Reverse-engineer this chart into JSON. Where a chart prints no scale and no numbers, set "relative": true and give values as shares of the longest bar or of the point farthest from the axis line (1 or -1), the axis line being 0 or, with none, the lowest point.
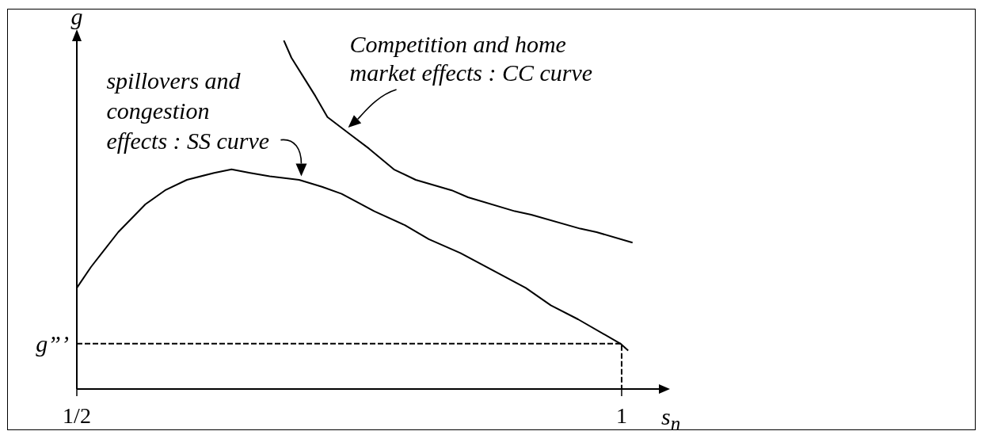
{
  "chart_data": {
    "type": "line",
    "relative": true,
    "xlabel": "s$_{n}$",
    "ylabel": "g",
    "xlim": [
      0.5,
      1.04
    ],
    "xticks": [
      {
        "value": 0.5,
        "label": "1/2"
      },
      1
    ],
    "marker": "none",
    "line_style": "solid",
    "series": [
      {
        "color": "#000000",
        "x": [
          0.5,
          0.513,
          0.523,
          0.538,
          0.563,
          0.581,
          0.601,
          0.626,
          0.642,
          0.659,
          0.677,
          0.704,
          0.725,
          0.743,
          0.773,
          0.801,
          0.823,
          0.852,
          0.882,
          0.912,
          0.935,
          0.96,
          0.999,
          1.006
        ],
        "values": [
          0.29,
          0.35,
          0.39,
          0.45,
          0.53,
          0.57,
          0.6,
          0.62,
          0.63,
          0.62,
          0.61,
          0.6,
          0.58,
          0.56,
          0.51,
          0.47,
          0.43,
          0.39,
          0.34,
          0.29,
          0.24,
          0.2,
          0.13,
          0.11
        ]
      },
      {
        "color": "#000000",
        "x": [
          0.69,
          0.697,
          0.709,
          0.719,
          0.73,
          0.751,
          0.768,
          0.791,
          0.811,
          0.844,
          0.859,
          0.902,
          0.917,
          0.962,
          0.977,
          1.01
        ],
        "values": [
          1.0,
          0.95,
          0.89,
          0.84,
          0.78,
          0.73,
          0.69,
          0.63,
          0.6,
          0.57,
          0.55,
          0.51,
          0.5,
          0.46,
          0.45,
          0.42
        ]
      },
      {
        "color": "#000000",
        "line_style": "dashed",
        "x": [
          0.5,
          1,
          1
        ],
        "values": [
          0.13,
          0.13,
          0
        ]
      }
    ],
    "annotations": [
      {
        "text": "spillovers and\ncongestion\neffects : SS curve",
        "x": 0.706,
        "y": 0.61
      },
      {
        "text": "Competition and home\nmarket effects : CC curve",
        "x": 0.749,
        "y": 0.75
      },
      {
        "text": "g”’",
        "x": 0.5,
        "y": 0.13
      }
    ]
  }
}
